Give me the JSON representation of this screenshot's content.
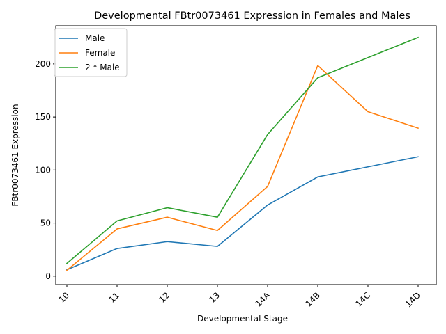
{
  "chart_data": {
    "type": "line",
    "title": "Developmental FBtr0073461 Expression in Females and Males",
    "xlabel": "Developmental Stage",
    "ylabel": "FBtr0073461 Expression",
    "categories": [
      "10",
      "11",
      "12",
      "13",
      "14A",
      "14B",
      "14C",
      "14D"
    ],
    "y_ticks": [
      0,
      50,
      100,
      150,
      200
    ],
    "ylim": [
      -8,
      236
    ],
    "grid": false,
    "legend_position": "top-left",
    "series": [
      {
        "name": "Male",
        "color": "#1f77b4",
        "values": [
          6,
          26,
          32.5,
          28,
          67,
          93.5,
          103,
          112.5
        ]
      },
      {
        "name": "Female",
        "color": "#ff7f0e",
        "values": [
          5.5,
          44.5,
          55.5,
          43,
          84.5,
          198.5,
          155,
          139.5
        ]
      },
      {
        "name": "2 * Male",
        "color": "#2ca02c",
        "values": [
          12,
          52,
          64.5,
          55.5,
          133.5,
          187,
          206,
          225
        ]
      }
    ]
  }
}
